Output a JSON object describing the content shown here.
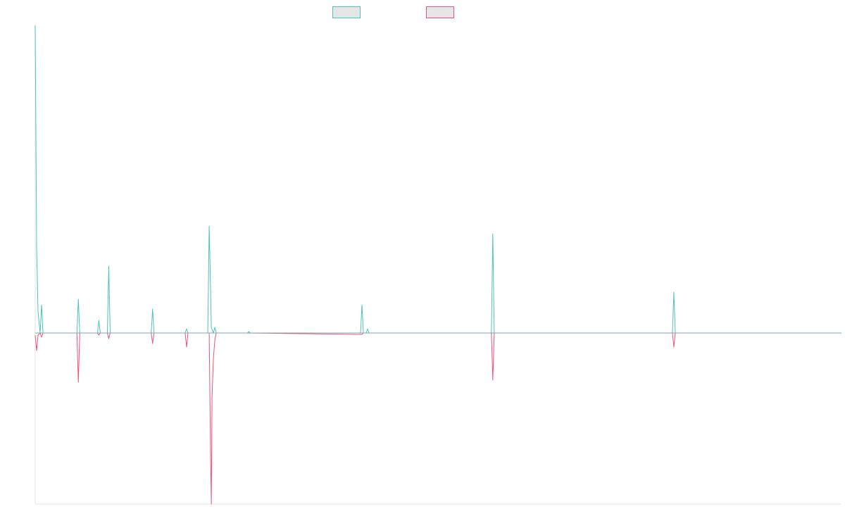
{
  "chart_data": {
    "type": "line",
    "title": "",
    "xlabel": "",
    "ylabel": "",
    "x_range": [
      0,
      1140
    ],
    "ylim": [
      -243,
      437
    ],
    "grid": false,
    "legend_position": "top-center",
    "series": [
      {
        "color": "#4dc4b9",
        "x": [
          0,
          2,
          4,
          7,
          9,
          11,
          59,
          61,
          63,
          88,
          90,
          92,
          102,
          104,
          106,
          111,
          164,
          166,
          168,
          212,
          214,
          216,
          244,
          246,
          248,
          249,
          252,
          254,
          256,
          300,
          302,
          304,
          460,
          462,
          464,
          468,
          470,
          472,
          645,
          647,
          649,
          901,
          903,
          905,
          1140
        ],
        "values": [
          437,
          120,
          30,
          0,
          40,
          0,
          0,
          48,
          0,
          0,
          18,
          0,
          0,
          95,
          0,
          0,
          0,
          34,
          0,
          0,
          6,
          0,
          0,
          152,
          60,
          8,
          0,
          8,
          0,
          0,
          2,
          0,
          0,
          40,
          0,
          0,
          6,
          0,
          0,
          141,
          0,
          0,
          58,
          0,
          0
        ]
      },
      {
        "color": "#f0527a",
        "x": [
          0,
          2,
          4,
          7,
          9,
          11,
          59,
          61,
          63,
          88,
          90,
          92,
          102,
          104,
          106,
          164,
          166,
          168,
          212,
          214,
          216,
          246,
          248,
          249,
          250,
          252,
          254,
          256,
          300,
          462,
          464,
          645,
          647,
          649,
          901,
          903,
          905,
          1140
        ],
        "values": [
          -3,
          -25,
          -3,
          0,
          -6,
          0,
          0,
          -70,
          0,
          0,
          -3,
          0,
          0,
          -8,
          0,
          0,
          -15,
          0,
          0,
          -20,
          0,
          0,
          -180,
          -243,
          -90,
          -35,
          -10,
          0,
          0,
          -2,
          0,
          0,
          -67,
          0,
          0,
          -20,
          0,
          0
        ]
      }
    ]
  }
}
